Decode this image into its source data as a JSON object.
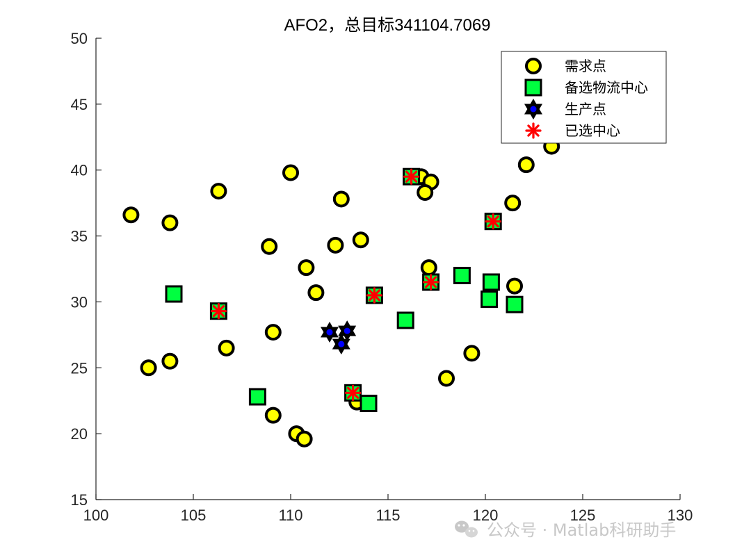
{
  "chart_data": {
    "type": "scatter",
    "title": "AFO2，总目标341104.7069",
    "xlabel": "",
    "ylabel": "",
    "xlim": [
      100,
      130
    ],
    "ylim": [
      15,
      50
    ],
    "xticks": [
      100,
      105,
      110,
      115,
      120,
      125,
      130
    ],
    "yticks": [
      15,
      20,
      25,
      30,
      35,
      40,
      45,
      50
    ],
    "grid": false,
    "legend_position": "top-right",
    "series": [
      {
        "name": "需求点",
        "marker": "circle",
        "color": "#ffff00",
        "points": [
          [
            101.8,
            36.6
          ],
          [
            103.8,
            36.0
          ],
          [
            106.3,
            38.4
          ],
          [
            110.0,
            39.8
          ],
          [
            112.6,
            37.8
          ],
          [
            108.9,
            34.2
          ],
          [
            112.3,
            34.3
          ],
          [
            113.6,
            34.7
          ],
          [
            110.8,
            32.6
          ],
          [
            111.3,
            30.7
          ],
          [
            109.1,
            27.7
          ],
          [
            106.7,
            26.5
          ],
          [
            103.8,
            25.5
          ],
          [
            102.7,
            25.0
          ],
          [
            109.1,
            21.4
          ],
          [
            110.3,
            20.0
          ],
          [
            110.7,
            19.6
          ],
          [
            113.4,
            22.4
          ],
          [
            116.7,
            39.5
          ],
          [
            117.2,
            39.1
          ],
          [
            116.9,
            38.3
          ],
          [
            117.1,
            32.6
          ],
          [
            118.0,
            24.2
          ],
          [
            119.3,
            26.1
          ],
          [
            121.4,
            37.5
          ],
          [
            122.1,
            40.4
          ],
          [
            123.4,
            41.8
          ],
          [
            121.5,
            31.2
          ]
        ]
      },
      {
        "name": "备选物流中心",
        "marker": "square",
        "color": "#00ff40",
        "points": [
          [
            104.0,
            30.6
          ],
          [
            106.3,
            29.3
          ],
          [
            108.3,
            22.8
          ],
          [
            113.2,
            23.1
          ],
          [
            114.0,
            22.3
          ],
          [
            114.3,
            30.5
          ],
          [
            115.9,
            28.6
          ],
          [
            116.2,
            39.5
          ],
          [
            117.2,
            31.5
          ],
          [
            118.8,
            32.0
          ],
          [
            120.3,
            31.5
          ],
          [
            120.2,
            30.2
          ],
          [
            121.5,
            29.8
          ],
          [
            120.4,
            36.1
          ]
        ]
      },
      {
        "name": "生产点",
        "marker": "hexagram",
        "color": "#0000ff",
        "points": [
          [
            112.0,
            27.7
          ],
          [
            112.9,
            27.8
          ],
          [
            112.6,
            26.8
          ]
        ]
      },
      {
        "name": "已选中心",
        "marker": "asterisk",
        "color": "#ff0000",
        "points": [
          [
            106.3,
            29.3
          ],
          [
            113.2,
            23.1
          ],
          [
            114.3,
            30.5
          ],
          [
            116.2,
            39.5
          ],
          [
            117.2,
            31.5
          ],
          [
            120.4,
            36.1
          ]
        ]
      }
    ]
  },
  "watermark": {
    "icon": "wechat-icon",
    "text": "公众号 · Matlab科研助手"
  }
}
